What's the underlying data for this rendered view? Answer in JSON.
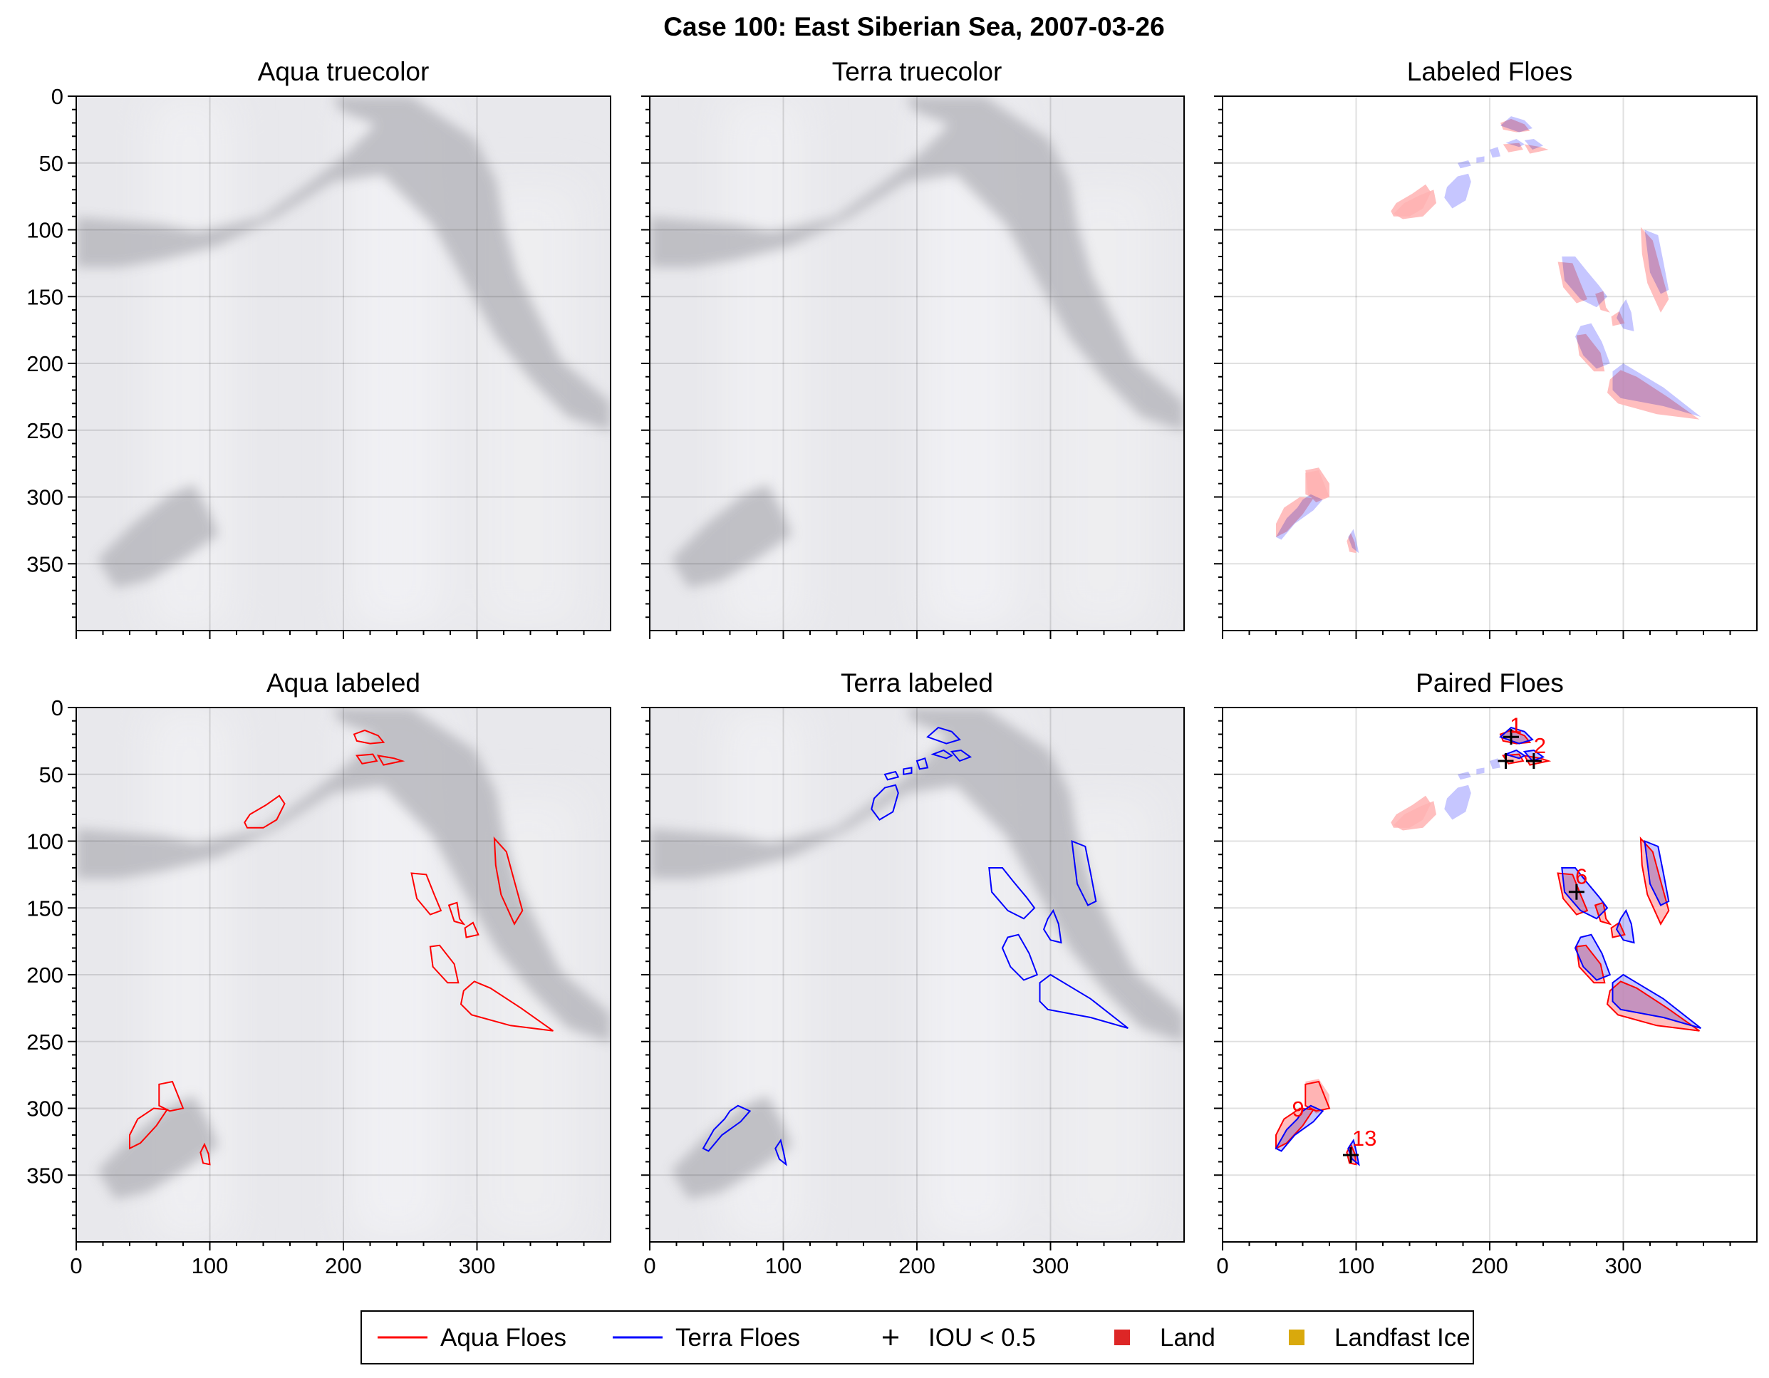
{
  "title": "Case 100: East Siberian Sea, 2007-03-26",
  "panels": [
    {
      "id": "aqua-truecolor",
      "title": "Aqua truecolor"
    },
    {
      "id": "terra-truecolor",
      "title": "Terra truecolor"
    },
    {
      "id": "labeled-floes",
      "title": "Labeled Floes"
    },
    {
      "id": "aqua-labeled",
      "title": "Aqua labeled"
    },
    {
      "id": "terra-labeled",
      "title": "Terra labeled"
    },
    {
      "id": "paired-floes",
      "title": "Paired Floes"
    }
  ],
  "axes": {
    "xlim": [
      0,
      400
    ],
    "ylim": [
      400,
      0
    ],
    "y_inverted": true,
    "xticks": [
      "0",
      "100",
      "200",
      "300"
    ],
    "yticks": [
      "0",
      "50",
      "100",
      "150",
      "200",
      "250",
      "300",
      "350"
    ],
    "grid": true
  },
  "legend": {
    "placement": "bottom-center",
    "entries": [
      {
        "label": "Aqua Floes",
        "marker": "line",
        "color": "#ff0000"
      },
      {
        "label": "Terra Floes",
        "marker": "line",
        "color": "#0000ff"
      },
      {
        "label": "IOU < 0.5",
        "marker": "plus",
        "color": "#000000"
      },
      {
        "label": "Land",
        "marker": "square",
        "color": "#dd2626"
      },
      {
        "label": "Landfast Ice",
        "marker": "square",
        "color": "#d9a90c"
      }
    ]
  },
  "colors": {
    "aqua": "#ff0000",
    "terra": "#0000ff",
    "aqua_fill": "#ffb3b3",
    "terra_fill": "#b3b3ff",
    "overlap_fill": "#a880c8",
    "ice_bg": "#e6e6ea",
    "water": "#b8b8be"
  },
  "chart_data": {
    "type": "image-overlay",
    "aqua_floes": [
      [
        [
          208,
          20
        ],
        [
          216,
          17
        ],
        [
          226,
          21
        ],
        [
          230,
          26
        ],
        [
          220,
          27
        ],
        [
          210,
          25
        ]
      ],
      [
        [
          210,
          36
        ],
        [
          222,
          35
        ],
        [
          225,
          40
        ],
        [
          214,
          42
        ]
      ],
      [
        [
          226,
          36
        ],
        [
          238,
          38
        ],
        [
          244,
          40
        ],
        [
          230,
          43
        ]
      ],
      [
        [
          126,
          86
        ],
        [
          130,
          80
        ],
        [
          142,
          73
        ],
        [
          152,
          66
        ],
        [
          156,
          72
        ],
        [
          150,
          84
        ],
        [
          140,
          90
        ],
        [
          128,
          90
        ]
      ],
      [
        [
          251,
          124
        ],
        [
          262,
          125
        ],
        [
          268,
          140
        ],
        [
          273,
          152
        ],
        [
          265,
          155
        ],
        [
          255,
          143
        ]
      ],
      [
        [
          279,
          148
        ],
        [
          285,
          146
        ],
        [
          287,
          158
        ],
        [
          290,
          162
        ],
        [
          283,
          160
        ]
      ],
      [
        [
          313,
          98
        ],
        [
          322,
          108
        ],
        [
          328,
          130
        ],
        [
          334,
          152
        ],
        [
          328,
          162
        ],
        [
          318,
          140
        ],
        [
          314,
          118
        ]
      ],
      [
        [
          291,
          165
        ],
        [
          297,
          161
        ],
        [
          301,
          170
        ],
        [
          292,
          172
        ]
      ],
      [
        [
          265,
          179
        ],
        [
          272,
          178
        ],
        [
          283,
          192
        ],
        [
          286,
          206
        ],
        [
          278,
          206
        ],
        [
          267,
          194
        ]
      ],
      [
        [
          290,
          212
        ],
        [
          298,
          205
        ],
        [
          310,
          210
        ],
        [
          333,
          225
        ],
        [
          357,
          242
        ],
        [
          325,
          238
        ],
        [
          296,
          230
        ],
        [
          288,
          222
        ]
      ],
      [
        [
          40,
          320
        ],
        [
          46,
          308
        ],
        [
          58,
          300
        ],
        [
          68,
          301
        ],
        [
          60,
          313
        ],
        [
          48,
          326
        ],
        [
          40,
          330
        ]
      ],
      [
        [
          62,
          282
        ],
        [
          72,
          280
        ],
        [
          76,
          290
        ],
        [
          80,
          300
        ],
        [
          70,
          302
        ],
        [
          62,
          298
        ]
      ],
      [
        [
          93,
          333
        ],
        [
          96,
          327
        ],
        [
          99,
          334
        ],
        [
          100,
          342
        ],
        [
          95,
          341
        ]
      ]
    ],
    "terra_floes": [
      [
        [
          208,
          22
        ],
        [
          216,
          15
        ],
        [
          226,
          18
        ],
        [
          232,
          24
        ],
        [
          222,
          27
        ]
      ],
      [
        [
          212,
          35
        ],
        [
          220,
          32
        ],
        [
          226,
          36
        ],
        [
          222,
          38
        ]
      ],
      [
        [
          226,
          33
        ],
        [
          233,
          32
        ],
        [
          240,
          37
        ],
        [
          232,
          40
        ]
      ],
      [
        [
          200,
          40
        ],
        [
          206,
          38
        ],
        [
          208,
          45
        ],
        [
          202,
          46
        ]
      ],
      [
        [
          190,
          46
        ],
        [
          196,
          45
        ],
        [
          196,
          49
        ],
        [
          190,
          50
        ]
      ],
      [
        [
          176,
          50
        ],
        [
          184,
          48
        ],
        [
          186,
          52
        ],
        [
          178,
          54
        ]
      ],
      [
        [
          168,
          68
        ],
        [
          176,
          60
        ],
        [
          184,
          58
        ],
        [
          186,
          64
        ],
        [
          182,
          78
        ],
        [
          172,
          84
        ],
        [
          166,
          76
        ]
      ],
      [
        [
          254,
          120
        ],
        [
          264,
          120
        ],
        [
          272,
          130
        ],
        [
          282,
          142
        ],
        [
          288,
          150
        ],
        [
          280,
          158
        ],
        [
          268,
          152
        ],
        [
          256,
          138
        ]
      ],
      [
        [
          298,
          158
        ],
        [
          302,
          152
        ],
        [
          306,
          162
        ],
        [
          308,
          176
        ],
        [
          300,
          174
        ],
        [
          295,
          166
        ]
      ],
      [
        [
          316,
          100
        ],
        [
          326,
          104
        ],
        [
          330,
          124
        ],
        [
          334,
          145
        ],
        [
          328,
          148
        ],
        [
          320,
          132
        ]
      ],
      [
        [
          268,
          172
        ],
        [
          276,
          170
        ],
        [
          284,
          184
        ],
        [
          290,
          200
        ],
        [
          280,
          204
        ],
        [
          270,
          194
        ],
        [
          264,
          180
        ]
      ],
      [
        [
          292,
          206
        ],
        [
          300,
          200
        ],
        [
          330,
          218
        ],
        [
          358,
          240
        ],
        [
          330,
          232
        ],
        [
          298,
          226
        ],
        [
          292,
          220
        ]
      ],
      [
        [
          40,
          330
        ],
        [
          48,
          316
        ],
        [
          56,
          308
        ],
        [
          60,
          302
        ],
        [
          66,
          298
        ],
        [
          75,
          302
        ],
        [
          68,
          310
        ],
        [
          54,
          320
        ],
        [
          44,
          332
        ]
      ],
      [
        [
          94,
          330
        ],
        [
          98,
          324
        ],
        [
          100,
          332
        ],
        [
          102,
          342
        ],
        [
          97,
          338
        ]
      ]
    ],
    "pair_labels": [
      {
        "text": "1",
        "x": 215,
        "y": 19
      },
      {
        "text": "2",
        "x": 233,
        "y": 34
      },
      {
        "text": "6",
        "x": 264,
        "y": 132
      },
      {
        "text": "9",
        "x": 52,
        "y": 306
      },
      {
        "text": "13",
        "x": 97,
        "y": 328
      }
    ],
    "iou_lt_05_markers": [
      [
        216,
        22
      ],
      [
        212,
        40
      ],
      [
        233,
        40
      ],
      [
        265,
        138
      ],
      [
        96,
        335
      ]
    ],
    "extra_aqua_only": [
      [
        [
          128,
          88
        ],
        [
          136,
          80
        ],
        [
          148,
          74
        ],
        [
          158,
          70
        ],
        [
          160,
          80
        ],
        [
          150,
          90
        ],
        [
          135,
          92
        ]
      ],
      [
        [
          62,
          280
        ],
        [
          72,
          278
        ],
        [
          80,
          290
        ],
        [
          80,
          300
        ],
        [
          70,
          304
        ],
        [
          64,
          298
        ]
      ]
    ],
    "extra_terra_only": [
      [
        [
          168,
          70
        ],
        [
          178,
          60
        ],
        [
          186,
          62
        ],
        [
          184,
          76
        ],
        [
          174,
          84
        ]
      ],
      [
        [
          192,
          46
        ],
        [
          198,
          46
        ],
        [
          198,
          52
        ],
        [
          192,
          52
        ]
      ]
    ]
  }
}
